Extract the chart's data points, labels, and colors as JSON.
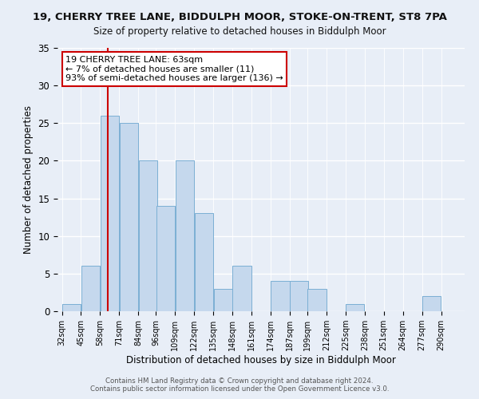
{
  "title": "19, CHERRY TREE LANE, BIDDULPH MOOR, STOKE-ON-TRENT, ST8 7PA",
  "subtitle": "Size of property relative to detached houses in Biddulph Moor",
  "xlabel": "Distribution of detached houses by size in Biddulph Moor",
  "ylabel": "Number of detached properties",
  "bin_labels": [
    "32sqm",
    "45sqm",
    "58sqm",
    "71sqm",
    "84sqm",
    "96sqm",
    "109sqm",
    "122sqm",
    "135sqm",
    "148sqm",
    "161sqm",
    "174sqm",
    "187sqm",
    "199sqm",
    "212sqm",
    "225sqm",
    "238sqm",
    "251sqm",
    "264sqm",
    "277sqm",
    "290sqm"
  ],
  "bin_edges": [
    32,
    45,
    58,
    71,
    84,
    96,
    109,
    122,
    135,
    148,
    161,
    174,
    187,
    199,
    212,
    225,
    238,
    251,
    264,
    277,
    290
  ],
  "bar_heights": [
    1,
    6,
    26,
    25,
    20,
    14,
    20,
    13,
    3,
    6,
    0,
    4,
    4,
    3,
    0,
    1,
    0,
    0,
    0,
    2
  ],
  "bar_color": "#c5d8ed",
  "bar_edge_color": "#7bafd4",
  "vline_x": 63,
  "vline_color": "#cc0000",
  "ylim": [
    0,
    35
  ],
  "yticks": [
    0,
    5,
    10,
    15,
    20,
    25,
    30,
    35
  ],
  "annotation_title": "19 CHERRY TREE LANE: 63sqm",
  "annotation_line1": "← 7% of detached houses are smaller (11)",
  "annotation_line2": "93% of semi-detached houses are larger (136) →",
  "annotation_box_color": "#ffffff",
  "annotation_box_edge": "#cc0000",
  "footer1": "Contains HM Land Registry data © Crown copyright and database right 2024.",
  "footer2": "Contains public sector information licensed under the Open Government Licence v3.0.",
  "bg_color": "#e8eef7",
  "plot_bg_color": "#e8eef7"
}
